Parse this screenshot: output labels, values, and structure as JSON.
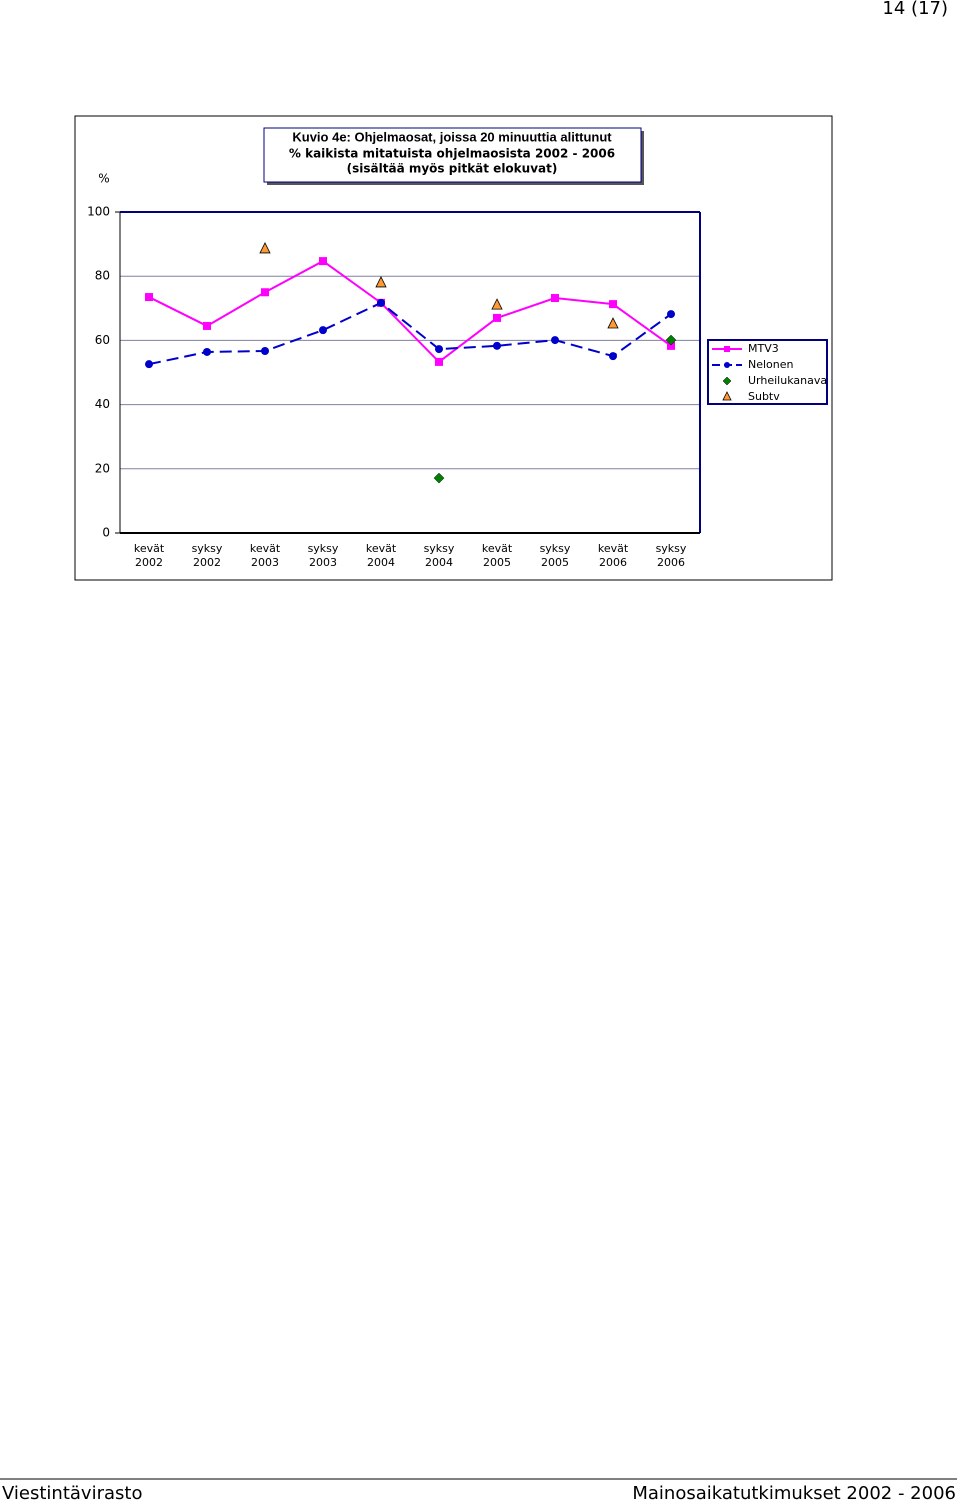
{
  "header": {
    "page": "14 (17)"
  },
  "footer": {
    "left": "Viestintävirasto",
    "right": "Mainosaikatutkimukset 2002 - 2006"
  },
  "chart_data": {
    "type": "line",
    "title": [
      "Kuvio 4e: Ohjelmaosat, joissa 20 minuuttia alittunut",
      "% kaikista mitatuista ohjelmaosista 2002 - 2006",
      "(sisältää myös pitkät elokuvat)"
    ],
    "y_label": "%",
    "categories": [
      "kevät 2002",
      "syksy 2002",
      "kevät 2003",
      "syksy 2003",
      "kevät 2004",
      "syksy 2004",
      "kevät 2005",
      "syksy 2005",
      "kevät 2006",
      "syksy 2006"
    ],
    "series": [
      {
        "name": "MTV3",
        "color": "#ff00ff",
        "marker": "square",
        "line": "solid",
        "values": [
          73.5,
          64.5,
          75,
          84.7,
          71.7,
          53.3,
          67,
          73.2,
          71.3,
          58.3
        ]
      },
      {
        "name": "Nelonen",
        "color": "#0000cc",
        "marker": "circle",
        "line": "dashed",
        "values": [
          52.6,
          56.4,
          56.7,
          63.2,
          71.7,
          57.3,
          58.3,
          60.1,
          55.1,
          68.2
        ]
      },
      {
        "name": "Urheilukanava",
        "color": "#008000",
        "marker": "diamond",
        "line": "none",
        "values": [
          null,
          null,
          null,
          null,
          null,
          17.1,
          null,
          null,
          null,
          60.1
        ]
      },
      {
        "name": "Subtv",
        "color": "#ff9933",
        "marker": "triangle",
        "line": "none",
        "values": [
          null,
          null,
          88.5,
          null,
          77.9,
          null,
          71,
          null,
          65.1,
          null
        ]
      }
    ],
    "ylim": [
      0,
      100
    ],
    "yticks": [
      0,
      20,
      40,
      60,
      80,
      100
    ],
    "grid": true,
    "legend": "right"
  }
}
